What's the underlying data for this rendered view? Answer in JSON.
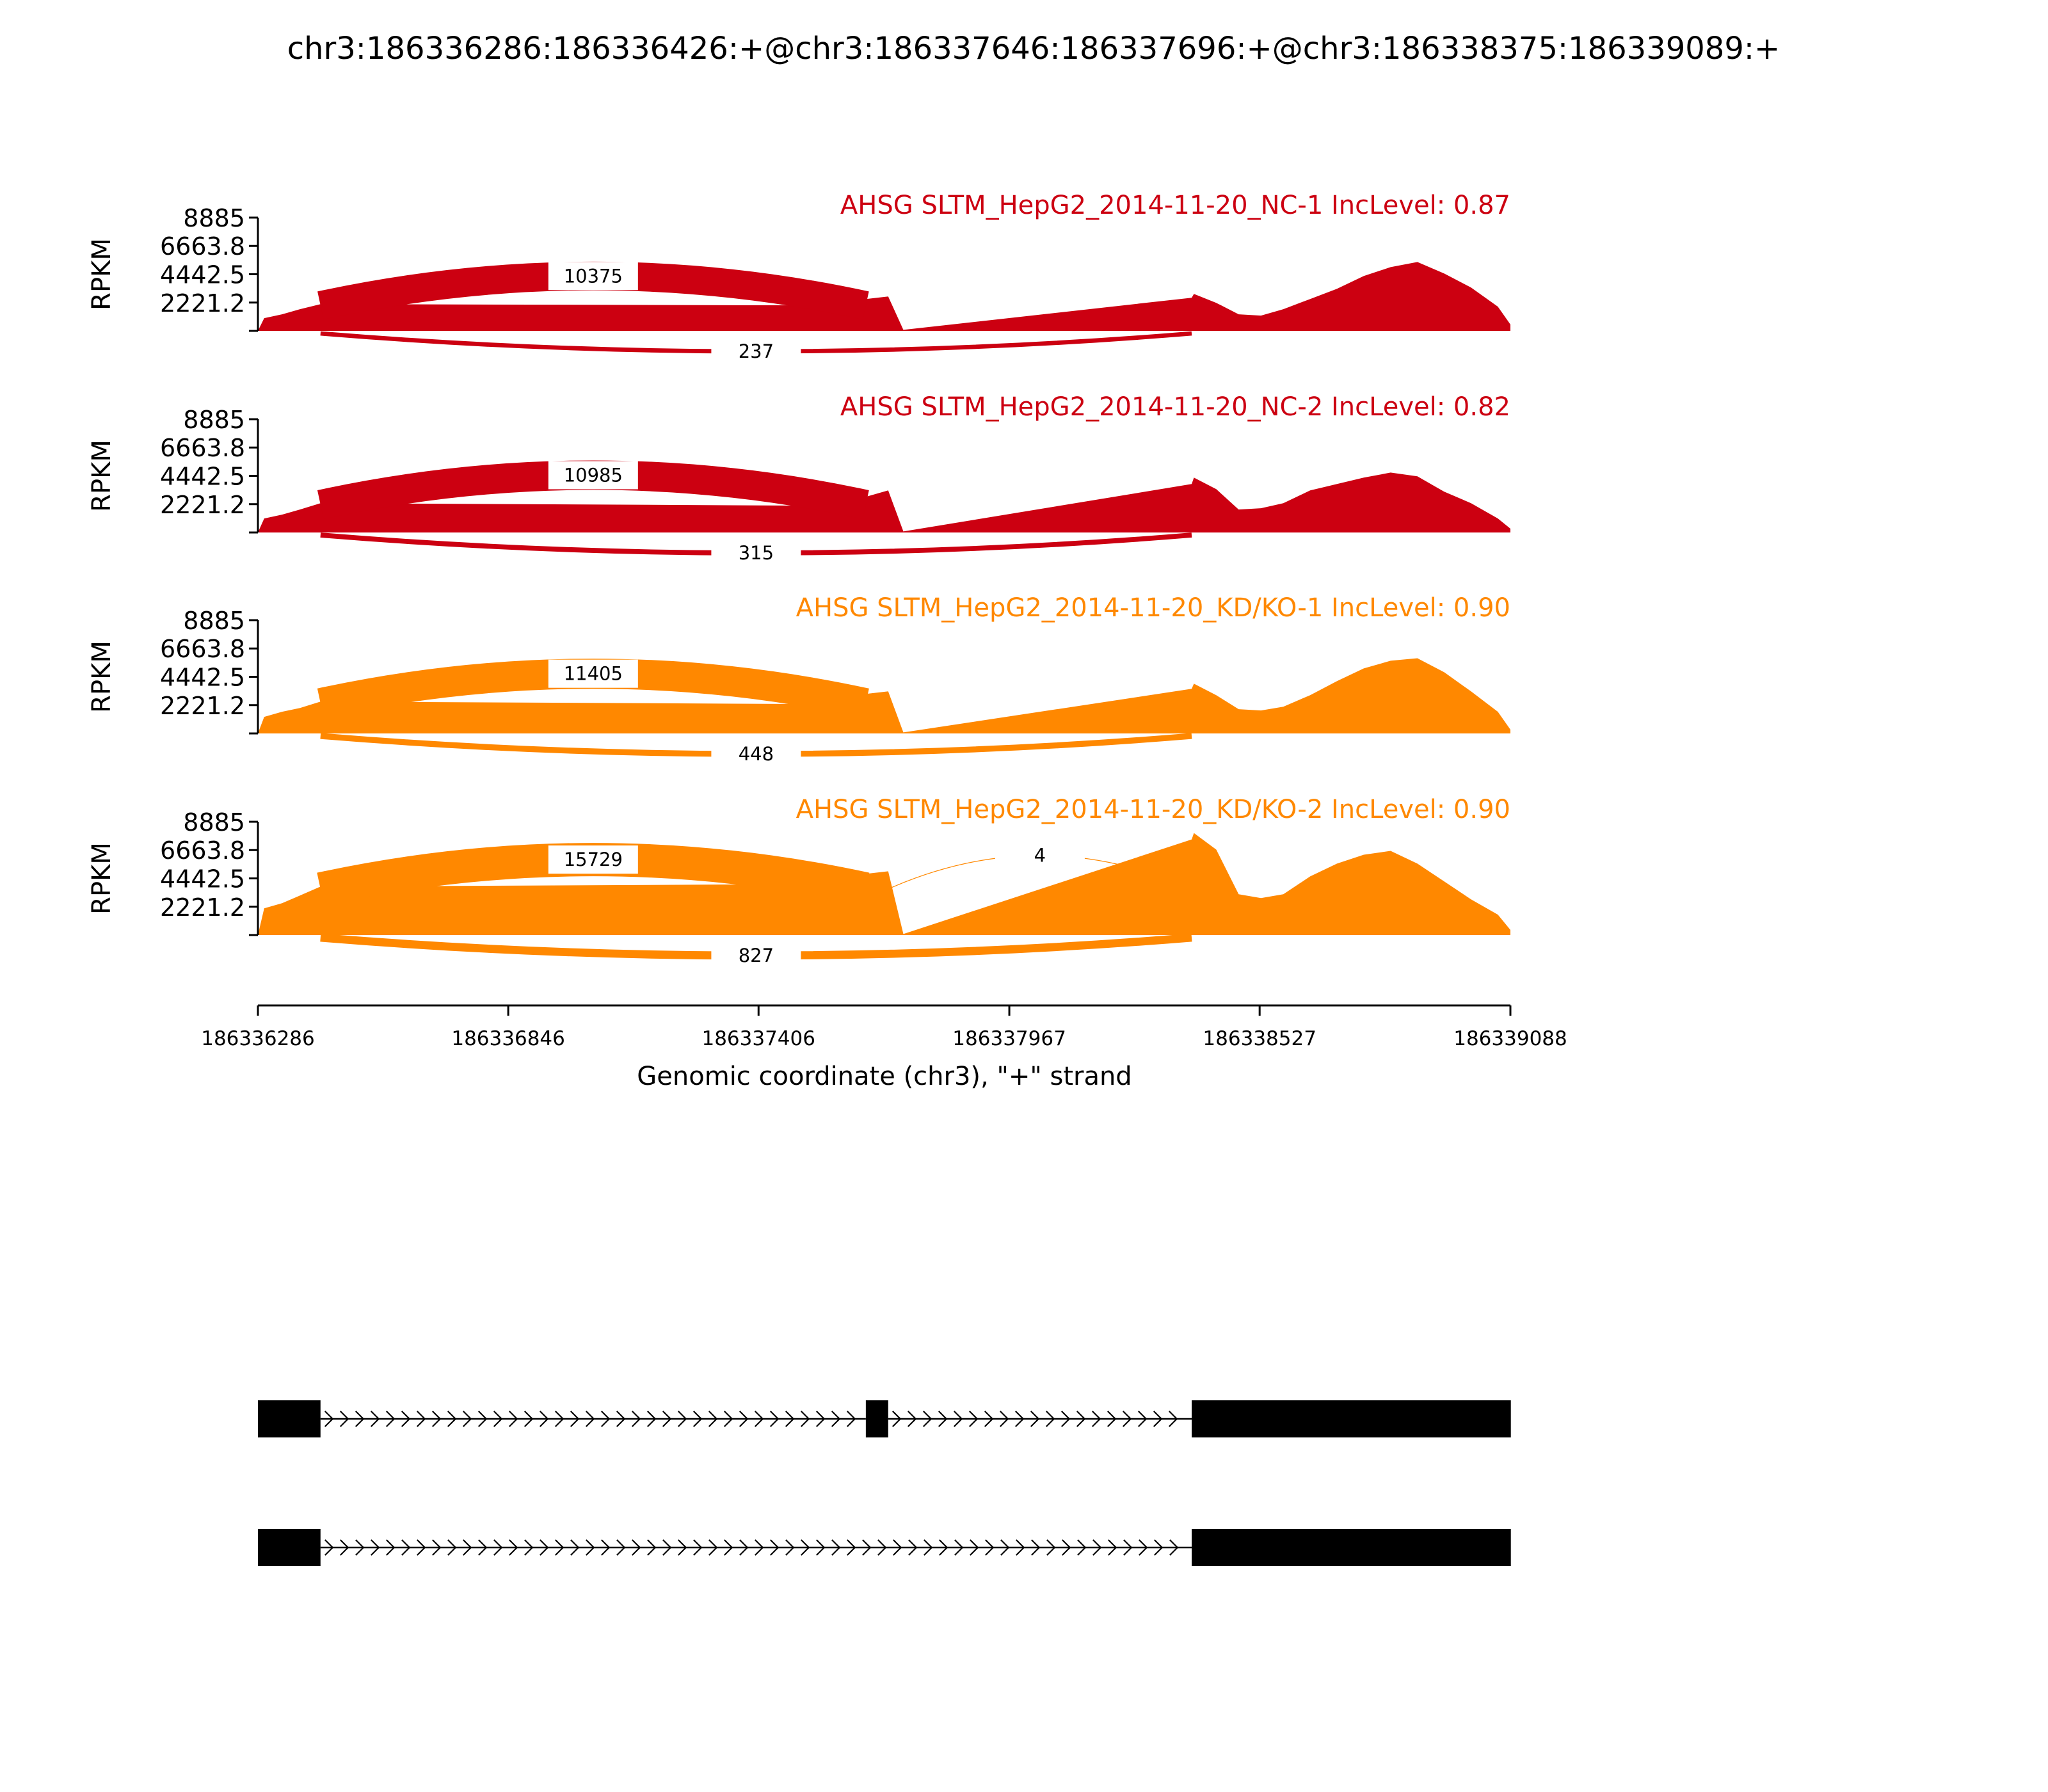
{
  "title": "chr3:186336286:186336426:+@chr3:186337646:186337696:+@chr3:186338375:186339089:+",
  "chart_data": {
    "type": "area",
    "subtype": "sashimi",
    "x_axis": {
      "label": "Genomic coordinate (chr3), \"+\" strand",
      "range": [
        186336286,
        186339088
      ],
      "ticks": [
        186336286,
        186336846,
        186337406,
        186337967,
        186338527,
        186339088
      ],
      "tick_labels": [
        "186336286",
        "186336846",
        "186337406",
        "186337967",
        "186338527",
        "186339088"
      ]
    },
    "y_axis": {
      "label": "RPKM",
      "range": [
        0,
        8885
      ],
      "ticks": [
        2221.2,
        4442.5,
        6663.8,
        8885
      ],
      "tick_labels": [
        "2221.2",
        "4442.5",
        "6663.8",
        "8885"
      ]
    },
    "exons": [
      {
        "start": 186336286,
        "end": 186336426
      },
      {
        "start": 186337646,
        "end": 186337696
      },
      {
        "start": 186338375,
        "end": 186339089
      }
    ],
    "coverage_profile_x": [
      186336286,
      186336300,
      186336340,
      186336380,
      186336426,
      186337560,
      186337600,
      186337646,
      186337696,
      186337730,
      186338375,
      186338380,
      186338430,
      186338480,
      186338530,
      186338580,
      186338640,
      186338700,
      186338760,
      186338820,
      186338880,
      186338940,
      186339000,
      186339060,
      186339088
    ],
    "series": [
      {
        "name": "AHSG SLTM_HepG2_2014-11-20_NC-1 IncLevel: 0.87",
        "color": "#cc0011",
        "coverage": [
          0,
          1000,
          1300,
          1700,
          2100,
          2000,
          2300,
          2500,
          2700,
          80,
          2600,
          2900,
          2200,
          1300,
          1200,
          1700,
          2500,
          3300,
          4300,
          5000,
          5400,
          4500,
          3400,
          1900,
          500
        ],
        "junctions": [
          {
            "count": 10375,
            "side": "top"
          },
          {
            "count": 237,
            "side": "bottom"
          }
        ]
      },
      {
        "name": "AHSG SLTM_HepG2_2014-11-20_NC-2 IncLevel: 0.82",
        "color": "#cc0011",
        "coverage": [
          0,
          1100,
          1400,
          1800,
          2300,
          2100,
          2400,
          2800,
          3300,
          80,
          3800,
          4300,
          3400,
          1800,
          1900,
          2300,
          3300,
          3800,
          4300,
          4700,
          4400,
          3200,
          2300,
          1100,
          300
        ],
        "junctions": [
          {
            "count": 10985,
            "side": "top"
          },
          {
            "count": 315,
            "side": "bottom"
          }
        ]
      },
      {
        "name": "AHSG SLTM_HepG2_2014-11-20_KD/KO-1 IncLevel: 0.90",
        "color": "#ff8800",
        "coverage": [
          0,
          1300,
          1700,
          2000,
          2500,
          2300,
          2800,
          3100,
          3300,
          80,
          3500,
          3900,
          3000,
          1900,
          1800,
          2100,
          3000,
          4100,
          5100,
          5700,
          5900,
          4800,
          3300,
          1700,
          300
        ],
        "junctions": [
          {
            "count": 11405,
            "side": "top"
          },
          {
            "count": 448,
            "side": "bottom"
          }
        ]
      },
      {
        "name": "AHSG SLTM_HepG2_2014-11-20_KD/KO-2 IncLevel: 0.90",
        "color": "#ff8800",
        "coverage": [
          0,
          2100,
          2500,
          3100,
          3800,
          4000,
          4400,
          4800,
          5000,
          80,
          7500,
          8000,
          6700,
          3200,
          2900,
          3200,
          4600,
          5600,
          6300,
          6600,
          5600,
          4200,
          2800,
          1600,
          400
        ],
        "junctions": [
          {
            "count": 15729,
            "side": "top"
          },
          {
            "count": 827,
            "side": "bottom"
          },
          {
            "count": 4,
            "side": "top"
          }
        ]
      }
    ],
    "transcripts": [
      {
        "exons": [
          [
            186336286,
            186336426
          ],
          [
            186337646,
            186337696
          ],
          [
            186338375,
            186339089
          ]
        ]
      },
      {
        "exons": [
          [
            186336286,
            186336426
          ],
          [
            186338375,
            186339089
          ]
        ]
      }
    ]
  }
}
